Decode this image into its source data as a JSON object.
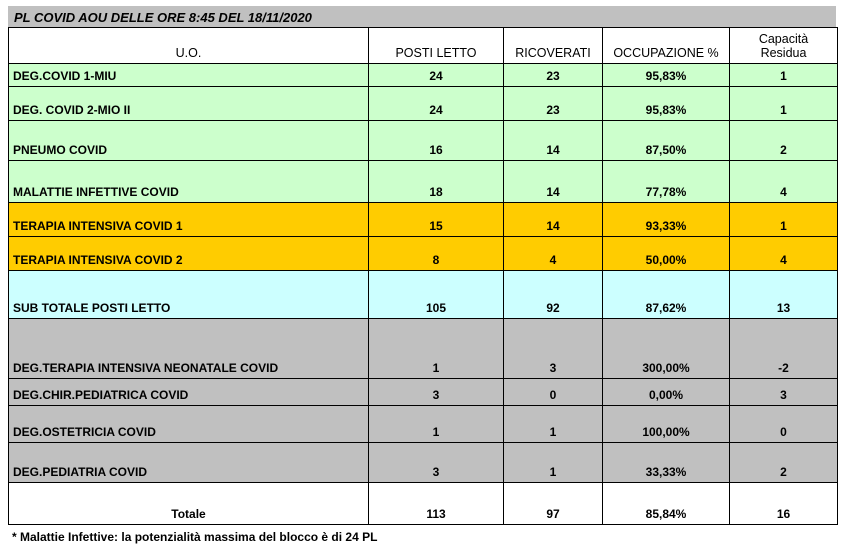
{
  "title": "PL COVID AOU DELLE ORE 8:45 DEL 18/11/2020",
  "headers": [
    "U.O.",
    "POSTI LETTO",
    "RICOVERATI",
    "OCCUPAZIONE %",
    "Capacità",
    "Residua"
  ],
  "rows": [
    {
      "name": "DEG.COVID 1-MIU",
      "posti": "24",
      "ricoverati": "23",
      "occ": "95,83%",
      "cap": "1",
      "color": "#ccffcc"
    },
    {
      "name": "DEG. COVID 2-MIO II",
      "posti": "24",
      "ricoverati": "23",
      "occ": "95,83%",
      "cap": "1",
      "color": "#ccffcc"
    },
    {
      "name": "PNEUMO COVID",
      "posti": "16",
      "ricoverati": "14",
      "occ": "87,50%",
      "cap": "2",
      "color": "#ccffcc"
    },
    {
      "name": "MALATTIE INFETTIVE COVID",
      "posti": "18",
      "ricoverati": "14",
      "occ": "77,78%",
      "cap": "4",
      "color": "#ccffcc"
    },
    {
      "name": "TERAPIA INTENSIVA COVID 1",
      "posti": "15",
      "ricoverati": "14",
      "occ": "93,33%",
      "cap": "1",
      "color": "#ffcc00"
    },
    {
      "name": "TERAPIA INTENSIVA COVID 2",
      "posti": "8",
      "ricoverati": "4",
      "occ": "50,00%",
      "cap": "4",
      "color": "#ffcc00"
    },
    {
      "name": "SUB TOTALE POSTI LETTO",
      "posti": "105",
      "ricoverati": "92",
      "occ": "87,62%",
      "cap": "13",
      "color": "#ccffff"
    },
    {
      "name": "DEG.TERAPIA INTENSIVA NEONATALE COVID",
      "posti": "1",
      "ricoverati": "3",
      "occ": "300,00%",
      "cap": "-2",
      "color": "#c0c0c0"
    },
    {
      "name": "DEG.CHIR.PEDIATRICA COVID",
      "posti": "3",
      "ricoverati": "0",
      "occ": "0,00%",
      "cap": "3",
      "color": "#c0c0c0"
    },
    {
      "name": "DEG.OSTETRICIA COVID",
      "posti": "1",
      "ricoverati": "1",
      "occ": "100,00%",
      "cap": "0",
      "color": "#c0c0c0"
    },
    {
      "name": "DEG.PEDIATRIA COVID",
      "posti": "3",
      "ricoverati": "1",
      "occ": "33,33%",
      "cap": "2",
      "color": "#c0c0c0"
    },
    {
      "name": "Totale",
      "posti": "113",
      "ricoverati": "97",
      "occ": "85,84%",
      "cap": "16",
      "color": "#ffffff"
    }
  ],
  "footnote": "*   Malattie Infettive: la potenzialità massima del blocco è di 24 PL"
}
